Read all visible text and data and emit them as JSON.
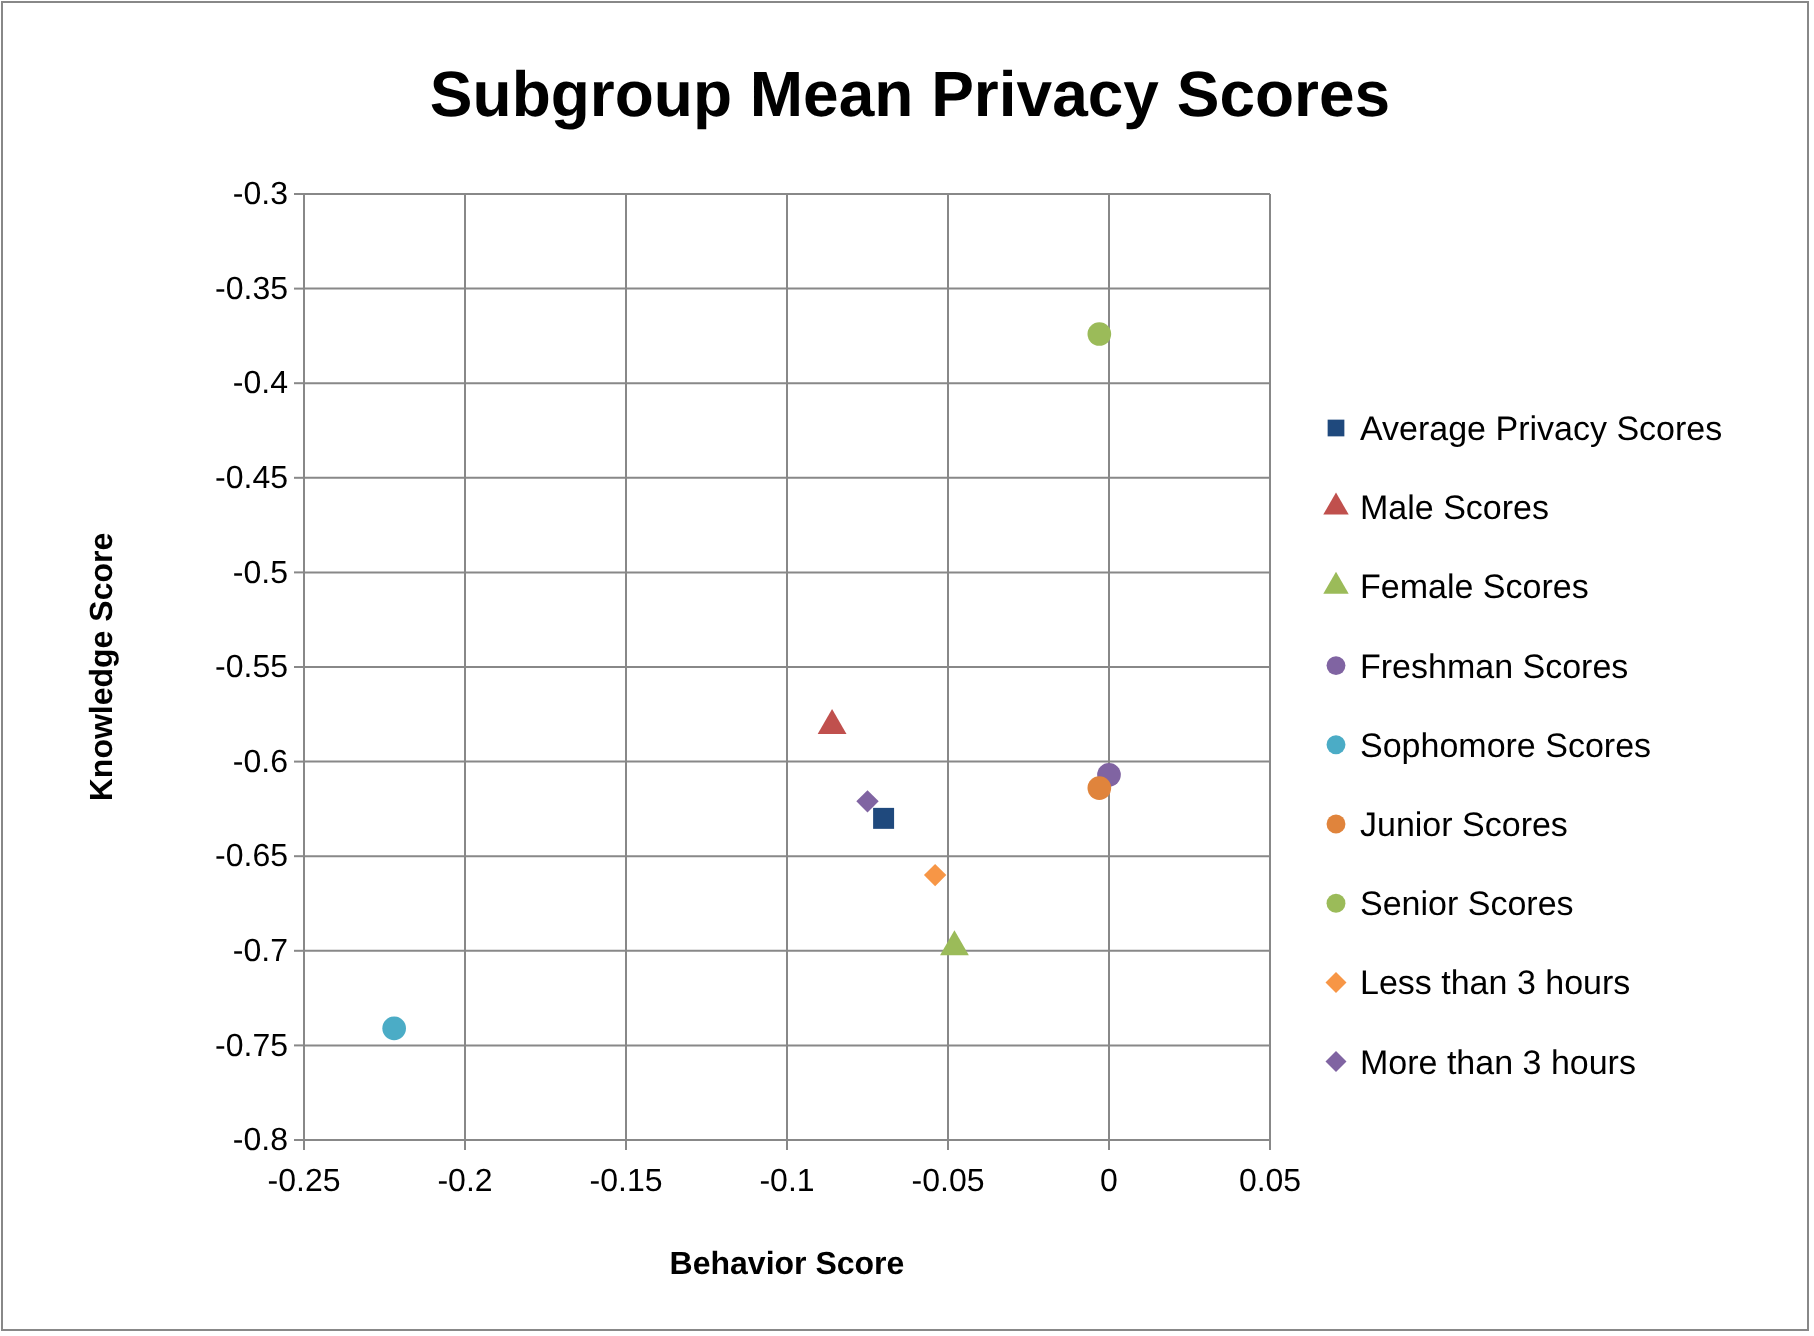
{
  "chart_data": {
    "type": "scatter",
    "title": "Subgroup Mean Privacy Scores",
    "xlabel": "Behavior Score",
    "ylabel": "Knowledge Score",
    "xlim": [
      -0.25,
      0.05
    ],
    "xticks": [
      -0.25,
      -0.2,
      -0.15,
      -0.1,
      -0.05,
      0,
      0.05
    ],
    "ylim": [
      -0.8,
      -0.3
    ],
    "yticks": [
      -0.8,
      -0.75,
      -0.7,
      -0.65,
      -0.6,
      -0.55,
      -0.5,
      -0.45,
      -0.4,
      -0.35,
      -0.3
    ],
    "grid": true,
    "legend": "right",
    "series": [
      {
        "name": "Average Privacy Scores",
        "color": "#1f497d",
        "marker": "square",
        "x": [
          -0.07
        ],
        "values": [
          -0.63
        ]
      },
      {
        "name": "Male Scores",
        "color": "#c0504d",
        "marker": "triangle",
        "x": [
          -0.086
        ],
        "values": [
          -0.581
        ]
      },
      {
        "name": "Female Scores",
        "color": "#9bbb59",
        "marker": "triangle",
        "x": [
          -0.048
        ],
        "values": [
          -0.698
        ]
      },
      {
        "name": "Freshman Scores",
        "color": "#8064a2",
        "marker": "circle",
        "x": [
          0.0
        ],
        "values": [
          -0.607
        ]
      },
      {
        "name": "Sophomore Scores",
        "color": "#4bacc6",
        "marker": "circle",
        "x": [
          -0.222
        ],
        "values": [
          -0.741
        ]
      },
      {
        "name": "Junior Scores",
        "color": "#e0843c",
        "marker": "circle",
        "x": [
          -0.003
        ],
        "values": [
          -0.614
        ]
      },
      {
        "name": "Senior Scores",
        "color": "#9bbb59",
        "marker": "circle",
        "x": [
          -0.003
        ],
        "values": [
          -0.374
        ]
      },
      {
        "name": "Less than 3 hours",
        "color": "#f79646",
        "marker": "diamond",
        "x": [
          -0.054
        ],
        "values": [
          -0.66
        ]
      },
      {
        "name": "More than 3 hours",
        "color": "#8064a2",
        "marker": "diamond",
        "x": [
          -0.075
        ],
        "values": [
          -0.621
        ]
      }
    ]
  }
}
